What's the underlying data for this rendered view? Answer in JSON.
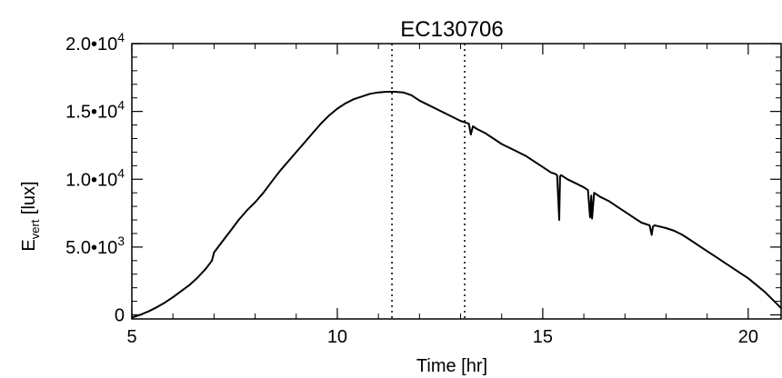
{
  "chart_data": {
    "type": "line",
    "title": "EC130706",
    "xlabel": "Time [hr]",
    "ylabel_main": "E",
    "ylabel_sub": "vert",
    "ylabel_unit": "[lux]",
    "xlim": [
      5,
      20.8
    ],
    "ylim": [
      -300,
      20000
    ],
    "x_ticks": [
      5,
      10,
      15,
      20
    ],
    "x_tick_labels": [
      "5",
      "10",
      "15",
      "20"
    ],
    "y_ticks": [
      {
        "value": 0,
        "mantissa": "0",
        "exponent": ""
      },
      {
        "value": 5000,
        "mantissa": "5.0•10",
        "exponent": "3"
      },
      {
        "value": 10000,
        "mantissa": "1.0•10",
        "exponent": "4"
      },
      {
        "value": 15000,
        "mantissa": "1.5•10",
        "exponent": "4"
      },
      {
        "value": 20000,
        "mantissa": "2.0•10",
        "exponent": "4"
      }
    ],
    "vlines": [
      11.33,
      13.1
    ],
    "grid": false,
    "series": [
      {
        "color": "#000000",
        "x": [
          5.0,
          5.2,
          5.4,
          5.6,
          5.8,
          6.0,
          6.2,
          6.4,
          6.6,
          6.8,
          6.95,
          7.0,
          7.2,
          7.4,
          7.6,
          7.8,
          8.0,
          8.2,
          8.4,
          8.6,
          8.8,
          9.0,
          9.2,
          9.4,
          9.6,
          9.8,
          10.0,
          10.2,
          10.4,
          10.6,
          10.8,
          11.0,
          11.2,
          11.4,
          11.6,
          11.8,
          12.0,
          12.2,
          12.4,
          12.6,
          12.8,
          13.0,
          13.2,
          13.25,
          13.3,
          13.4,
          13.6,
          13.8,
          14.0,
          14.2,
          14.4,
          14.6,
          14.8,
          15.0,
          15.2,
          15.3,
          15.35,
          15.4,
          15.42,
          15.44,
          15.5,
          15.6,
          15.8,
          16.0,
          16.1,
          16.15,
          16.18,
          16.2,
          16.25,
          16.3,
          16.4,
          16.6,
          16.8,
          17.0,
          17.2,
          17.4,
          17.6,
          17.65,
          17.68,
          17.72,
          17.8,
          18.0,
          18.2,
          18.4,
          18.6,
          18.8,
          19.0,
          19.2,
          19.4,
          19.6,
          19.8,
          20.0,
          20.2,
          20.4,
          20.6,
          20.8
        ],
        "y": [
          -200,
          0,
          250,
          550,
          900,
          1300,
          1750,
          2200,
          2750,
          3400,
          4000,
          4600,
          5400,
          6200,
          7000,
          7700,
          8300,
          9000,
          9800,
          10600,
          11300,
          12000,
          12700,
          13400,
          14100,
          14700,
          15200,
          15600,
          15900,
          16100,
          16300,
          16400,
          16450,
          16450,
          16400,
          16200,
          15800,
          15500,
          15200,
          14900,
          14600,
          14300,
          14100,
          13300,
          13900,
          13700,
          13400,
          13000,
          12600,
          12300,
          12000,
          11700,
          11300,
          10900,
          10500,
          10400,
          10300,
          7000,
          10200,
          10300,
          10200,
          10000,
          9700,
          9400,
          9200,
          7200,
          8800,
          7100,
          9000,
          8900,
          8700,
          8400,
          8000,
          7600,
          7200,
          6800,
          6600,
          5900,
          6500,
          6600,
          6550,
          6400,
          6200,
          5900,
          5500,
          5100,
          4700,
          4300,
          3900,
          3500,
          3100,
          2700,
          2200,
          1700,
          1100,
          500
        ]
      }
    ]
  }
}
